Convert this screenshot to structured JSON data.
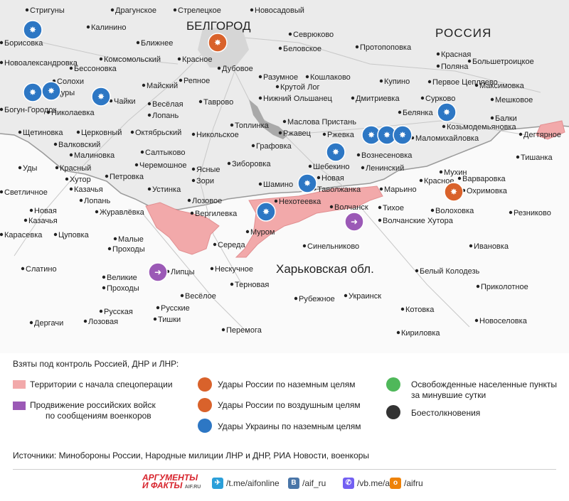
{
  "map": {
    "region_russia": "РОССИЯ",
    "region_kharkov": "Харьковская обл.",
    "city_belgorod": "БЕЛГОРОД",
    "colors": {
      "russia_fill": "#eeeeee",
      "ukraine_fill": "#fafafa",
      "territory_fill": "#f2a9aa",
      "russian_strike": "#d9622b",
      "ukrainian_strike": "#2d77c4",
      "advance": "#9b59b6",
      "liberated": "#4fb85a",
      "clash": "#333333"
    },
    "labels": [
      {
        "t": "Стригуны"
      },
      {
        "t": "Драгунское"
      },
      {
        "t": "Стрелецкое"
      },
      {
        "t": "Новосадовый"
      },
      {
        "t": "Калинино"
      },
      {
        "t": "Севрюково"
      },
      {
        "t": "Борисовка"
      },
      {
        "t": "Ближнее"
      },
      {
        "t": "Беловское"
      },
      {
        "t": "Протопоповка"
      },
      {
        "t": "Новоалександровка"
      },
      {
        "t": "Комсомольский"
      },
      {
        "t": "Красное"
      },
      {
        "t": "Бессоновка"
      },
      {
        "t": "Дубовое"
      },
      {
        "t": "Красная"
      },
      {
        "t": "Поляна"
      },
      {
        "t": "Большетроицкое"
      },
      {
        "t": "Солохи"
      },
      {
        "t": "Байцуры"
      },
      {
        "t": "Разумное"
      },
      {
        "t": "Кошлаково"
      },
      {
        "t": "Купино"
      },
      {
        "t": "Первое Цепляево"
      },
      {
        "t": "Майский"
      },
      {
        "t": "Репное"
      },
      {
        "t": "Крутой Лог"
      },
      {
        "t": "Максимовка"
      },
      {
        "t": "Чайки"
      },
      {
        "t": "Весёлая"
      },
      {
        "t": "Лопань"
      },
      {
        "t": "Нижний Ольшанец"
      },
      {
        "t": "Дмитриевка"
      },
      {
        "t": "Сурково"
      },
      {
        "t": "Мешковое"
      },
      {
        "t": "Богун-Городок"
      },
      {
        "t": "Николаевка"
      },
      {
        "t": "Таврово"
      },
      {
        "t": "Белянка"
      },
      {
        "t": "Балки"
      },
      {
        "t": "Маслова Пристань"
      },
      {
        "t": "Козьмодемьяновка"
      },
      {
        "t": "Топлинка"
      },
      {
        "t": "Ржавец"
      },
      {
        "t": "Щетиновка"
      },
      {
        "t": "Церковный"
      },
      {
        "t": "Октябрьский"
      },
      {
        "t": "Никольское"
      },
      {
        "t": "Ржевка"
      },
      {
        "t": "Маломихайловка"
      },
      {
        "t": "Дегтярное"
      },
      {
        "t": "Валковский"
      },
      {
        "t": "Графовка"
      },
      {
        "t": "Малиновка"
      },
      {
        "t": "Салтыково"
      },
      {
        "t": "Вознесеновка"
      },
      {
        "t": "Тишанка"
      },
      {
        "t": "Уды"
      },
      {
        "t": "Черемошное"
      },
      {
        "t": "Зиборовка"
      },
      {
        "t": "Шебекино"
      },
      {
        "t": "Ленинский"
      },
      {
        "t": "Мухин"
      },
      {
        "t": "Красный"
      },
      {
        "t": "Хутор"
      },
      {
        "t": "Ясные"
      },
      {
        "t": "Зори"
      },
      {
        "t": "Варваровка"
      },
      {
        "t": "Петровка"
      },
      {
        "t": "Новая"
      },
      {
        "t": "Таволжанка"
      },
      {
        "t": "Красное"
      },
      {
        "t": "Шамино"
      },
      {
        "t": "Казачья"
      },
      {
        "t": "Лопань"
      },
      {
        "t": "Устинка"
      },
      {
        "t": "Марьино"
      },
      {
        "t": "Охримовка"
      },
      {
        "t": "Светличное"
      },
      {
        "t": "Лозовое"
      },
      {
        "t": "Нехотеевка"
      },
      {
        "t": "Новая"
      },
      {
        "t": "Казачья"
      },
      {
        "t": "Журавлёвка"
      },
      {
        "t": "Вергилевка"
      },
      {
        "t": "Волчанск"
      },
      {
        "t": "Тихое"
      },
      {
        "t": "Волоховка"
      },
      {
        "t": "Резниково"
      },
      {
        "t": "Карасевка"
      },
      {
        "t": "Цуповка"
      },
      {
        "t": "Муром"
      },
      {
        "t": "Волчанские Хутора"
      },
      {
        "t": "Малые"
      },
      {
        "t": "Проходы"
      },
      {
        "t": "Середа"
      },
      {
        "t": "Синельниково"
      },
      {
        "t": "Ивановка"
      },
      {
        "t": "Слатино"
      },
      {
        "t": "Липцы"
      },
      {
        "t": "Нескучное"
      },
      {
        "t": "Белый Колодезь"
      },
      {
        "t": "Великие"
      },
      {
        "t": "Проходы"
      },
      {
        "t": "Терновая"
      },
      {
        "t": "Приколотное"
      },
      {
        "t": "Весёлое"
      },
      {
        "t": "Рубежное"
      },
      {
        "t": "Украинск"
      },
      {
        "t": "Русская"
      },
      {
        "t": "Лозовая"
      },
      {
        "t": "Русские"
      },
      {
        "t": "Тишки"
      },
      {
        "t": "Котовка"
      },
      {
        "t": "Новоселовка"
      },
      {
        "t": "Дергачи"
      },
      {
        "t": "Перемога"
      },
      {
        "t": "Кириловка"
      }
    ],
    "markers": [
      {
        "type": "ukrainian_strike"
      },
      {
        "type": "russian_air_strike"
      },
      {
        "type": "ukrainian_strike"
      },
      {
        "type": "ukrainian_strike"
      },
      {
        "type": "ukrainian_strike"
      },
      {
        "type": "ukrainian_strike"
      },
      {
        "type": "ukrainian_strike"
      },
      {
        "type": "ukrainian_strike"
      },
      {
        "type": "ukrainian_strike"
      },
      {
        "type": "ukrainian_strike"
      },
      {
        "type": "ukrainian_strike"
      },
      {
        "type": "ukrainian_strike"
      },
      {
        "type": "russian_ground_strike"
      },
      {
        "type": "advance"
      },
      {
        "type": "advance"
      }
    ]
  },
  "legend": {
    "title": "Взяты под контроль Россией, ДНР и ЛНР:",
    "territories": "Территории с начала спецоперации",
    "advance_line1": "Продвижение российских войск",
    "advance_line2": "по сообщениям военкоров",
    "russian_ground": "Удары России по наземным целям",
    "russian_air": "Удары России по воздушным целям",
    "ukrainian_ground": "Удары Украины по наземным целям",
    "liberated_line1": "Освобожденные населенные пункты",
    "liberated_line2": "за минувшие сутки",
    "clashes": "Боестолкновения",
    "sources": "Источники: Минобороны России, Народные милиции ЛНР и ДНР, РИА Новости, военкоры"
  },
  "footer": {
    "logo_line1": "АРГУМЕНТЫ",
    "logo_line2": "И ФАКТЫ",
    "logo_suffix": "AIF.RU",
    "telegram": "/t.me/aifonline",
    "vk": "/aif_ru",
    "viber": "/vb.me/aif",
    "ok": "/aifru"
  }
}
